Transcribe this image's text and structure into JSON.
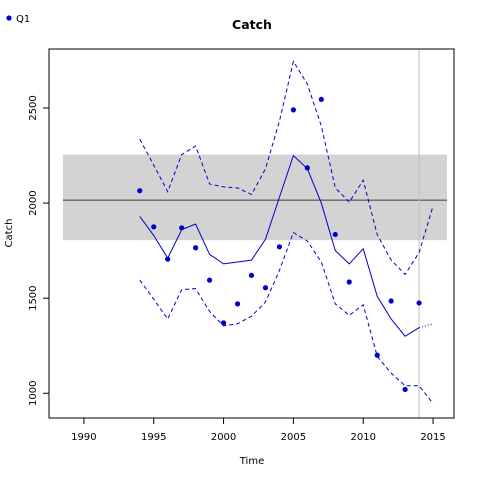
{
  "chart_data": {
    "type": "line",
    "title": "Catch",
    "xlabel": "Time",
    "ylabel": "Catch",
    "xlim": [
      1987.5,
      2016.5
    ],
    "ylim": [
      870,
      2810
    ],
    "xticks": [
      1990,
      1995,
      2000,
      2005,
      2010,
      2015
    ],
    "yticks": [
      1000,
      1500,
      2000,
      2500
    ],
    "legend": {
      "position": "top-left",
      "entries": [
        "Q1"
      ]
    },
    "colors": {
      "series": "#0000cc",
      "band": "#d3d3d3",
      "reference_line": "#666666",
      "vline": "#bfbfbf",
      "axis": "#000000"
    },
    "reference_band": {
      "x": [
        1988.5,
        2016
      ],
      "y": [
        1805,
        2255
      ]
    },
    "reference_line": {
      "y": 2015
    },
    "vline": {
      "x": 2014
    },
    "observations": {
      "name": "Q1",
      "x": [
        1994,
        1995,
        1996,
        1997,
        1998,
        1999,
        2000,
        2001,
        2002,
        2003,
        2004,
        2005,
        2006,
        2007,
        2008,
        2009,
        2011,
        2012,
        2013,
        2014
      ],
      "y": [
        2065,
        1875,
        1705,
        1870,
        1765,
        1595,
        1370,
        1470,
        1620,
        1555,
        1770,
        2490,
        2185,
        2545,
        1835,
        1585,
        1200,
        1485,
        1020,
        1475
      ]
    },
    "estimate": {
      "x": [
        1994,
        1995,
        1996,
        1997,
        1998,
        1999,
        2000,
        2001,
        2002,
        2003,
        2004,
        2005,
        2006,
        2007,
        2008,
        2009,
        2010,
        2011,
        2012,
        2013,
        2014
      ],
      "y": [
        1930,
        1830,
        1710,
        1860,
        1890,
        1730,
        1680,
        1690,
        1700,
        1810,
        2030,
        2250,
        2180,
        2000,
        1750,
        1680,
        1760,
        1510,
        1390,
        1300,
        1345
      ]
    },
    "upper": {
      "x": [
        1994,
        1995,
        1996,
        1997,
        1998,
        1999,
        2000,
        2001,
        2002,
        2003,
        2004,
        2005,
        2006,
        2007,
        2008,
        2009,
        2010,
        2011,
        2012,
        2013,
        2014,
        2015
      ],
      "y": [
        2335,
        2200,
        2060,
        2255,
        2300,
        2100,
        2085,
        2080,
        2045,
        2180,
        2430,
        2745,
        2625,
        2405,
        2080,
        2005,
        2120,
        1835,
        1700,
        1625,
        1740,
        1985
      ]
    },
    "lower": {
      "x": [
        1994,
        1995,
        1996,
        1997,
        1998,
        1999,
        2000,
        2001,
        2002,
        2003,
        2004,
        2005,
        2006,
        2007,
        2008,
        2009,
        2010,
        2011,
        2012,
        2013,
        2014,
        2015
      ],
      "y": [
        1595,
        1495,
        1390,
        1545,
        1550,
        1430,
        1355,
        1365,
        1405,
        1480,
        1645,
        1845,
        1800,
        1690,
        1470,
        1410,
        1465,
        1195,
        1105,
        1040,
        1040,
        945
      ]
    },
    "projection": {
      "x": [
        2014,
        2015
      ],
      "y": [
        1345,
        1365
      ]
    }
  }
}
